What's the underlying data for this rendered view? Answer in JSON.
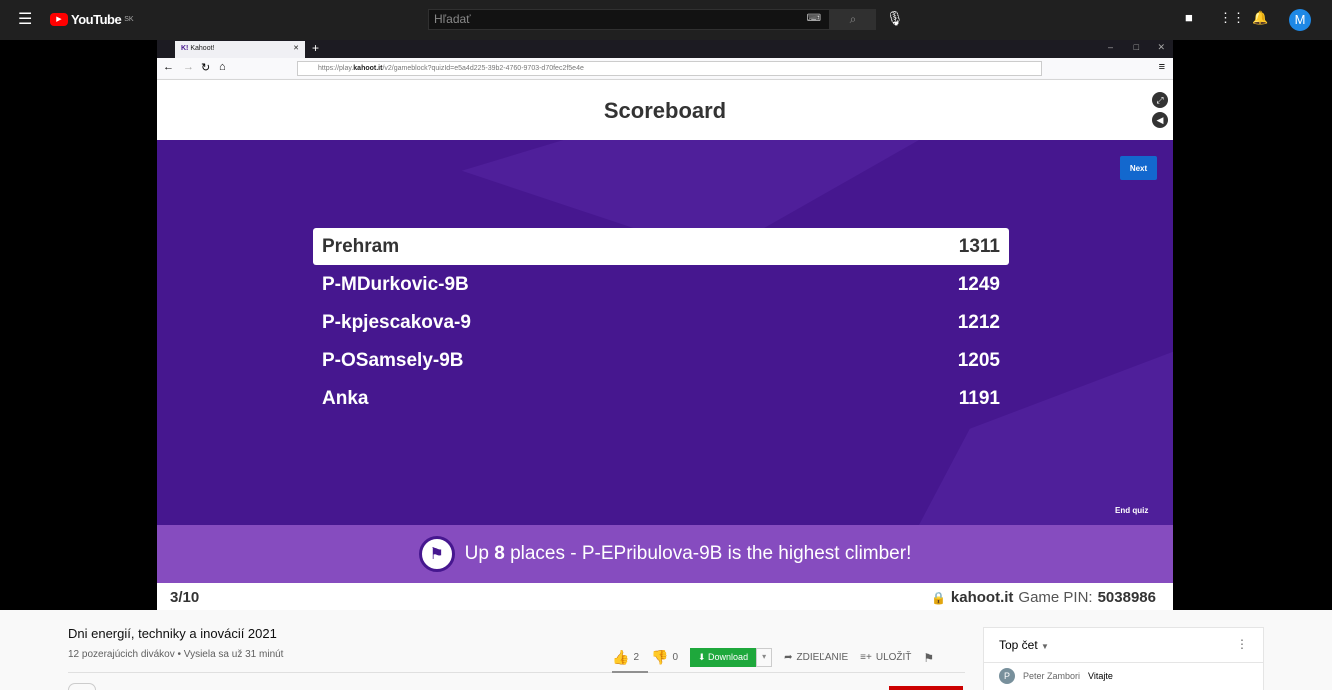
{
  "youtube": {
    "logo": "YouTube",
    "region": "SK",
    "search_placeholder": "Hľadať",
    "avatar_letter": "M"
  },
  "browser": {
    "tab_title": "Kahoot!",
    "url_prefix": "https://play.",
    "url_domain": "kahoot.it",
    "url_path": "/v2/gameblock?quizId=e5a4d225-39b2-4760-9703-d70fec2f5e4e"
  },
  "kahoot": {
    "title": "Scoreboard",
    "next_label": "Next",
    "end_label": "End quiz",
    "scores": [
      {
        "name": "Prehram",
        "score": "1311"
      },
      {
        "name": "P-MDurkovic-9B",
        "score": "1249"
      },
      {
        "name": "P-kpjescakova-9",
        "score": "1212"
      },
      {
        "name": "P-OSamsely-9B",
        "score": "1205"
      },
      {
        "name": "Anka",
        "score": "1191"
      }
    ],
    "banner_pre": "Up ",
    "banner_num": "8",
    "banner_post": " places - P-EPribulova-9B is the highest climber!",
    "progress": "3/10",
    "site": "kahoot.it",
    "pin_label": "Game PIN:",
    "pin": "5038986",
    "colors": {
      "purple": "#46178f",
      "banner": "#864cbf",
      "button": "#1368ce"
    }
  },
  "video": {
    "title": "Dni energií, techniky a inovácií 2021",
    "meta": "12 pozerajúcich divákov • Vysiela sa už 31 minút",
    "likes": "2",
    "dislikes": "0",
    "download": "Download",
    "share": "ZDIEĽANIE",
    "save": "ULOŽIŤ"
  },
  "chat": {
    "header": "Top čet",
    "messages": [
      {
        "initial": "P",
        "author": "Peter Zambori",
        "text": "Vitajte"
      }
    ]
  }
}
